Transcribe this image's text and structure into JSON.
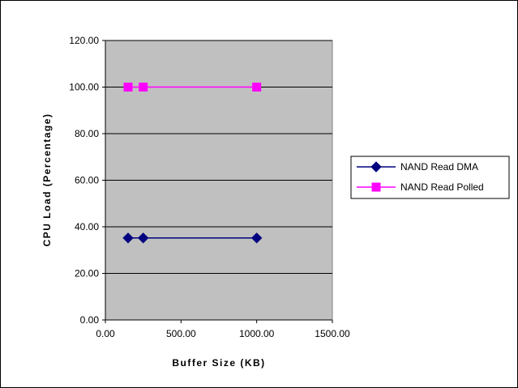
{
  "chart_data": {
    "type": "scatter",
    "title": "",
    "xlabel": "Buffer Size (KB)",
    "ylabel": "CPU Load (Percentage)",
    "xlim": [
      0,
      1500
    ],
    "ylim": [
      0,
      120
    ],
    "x_ticks": [
      "0.00",
      "500.00",
      "1000.00",
      "1500.00"
    ],
    "y_ticks": [
      "0.00",
      "20.00",
      "40.00",
      "60.00",
      "80.00",
      "100.00",
      "120.00"
    ],
    "grid": "horizontal",
    "legend_position": "right",
    "series": [
      {
        "name": "NAND Read DMA",
        "color": "#000080",
        "marker": "diamond",
        "x": [
          150,
          250,
          1000
        ],
        "y": [
          35.2,
          35.2,
          35.2
        ]
      },
      {
        "name": "NAND Read Polled",
        "color": "#ff00ff",
        "marker": "square",
        "x": [
          150,
          250,
          1000
        ],
        "y": [
          100,
          100,
          100
        ]
      }
    ]
  }
}
